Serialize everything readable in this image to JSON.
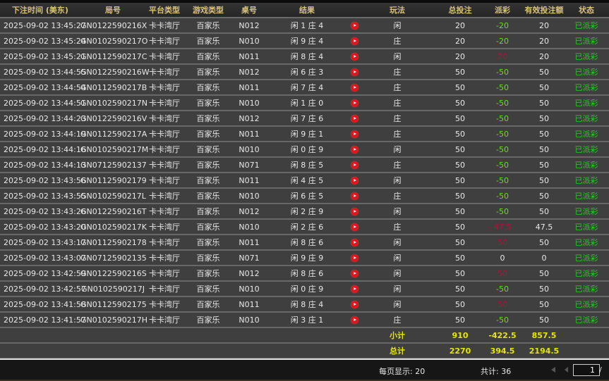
{
  "headers": [
    "下注时间 (美东)",
    "局号",
    "平台类型",
    "游戏类型",
    "桌号",
    "结果",
    "",
    "玩法",
    "总投注",
    "派彩",
    "有效投注额",
    "状态"
  ],
  "rows": [
    {
      "time": "2025-09-02 13:45:27",
      "id": "GN0122590216X",
      "platform": "卡卡湾厅",
      "game": "百家乐",
      "table": "N012",
      "result": "闲 1 庄 4",
      "play": "闲",
      "bet": "20",
      "payout": "-20",
      "payout_color": "green",
      "valid": "20",
      "status": "已派彩"
    },
    {
      "time": "2025-09-02 13:45:24",
      "id": "GN0102590217O",
      "platform": "卡卡湾厅",
      "game": "百家乐",
      "table": "N010",
      "result": "闲 9 庄 4",
      "play": "庄",
      "bet": "20",
      "payout": "-20",
      "payout_color": "green",
      "valid": "20",
      "status": "已派彩"
    },
    {
      "time": "2025-09-02 13:45:21",
      "id": "GN0112590217C",
      "platform": "卡卡湾厅",
      "game": "百家乐",
      "table": "N011",
      "result": "闲 8 庄 4",
      "play": "闲",
      "bet": "20",
      "payout": "20",
      "payout_color": "red",
      "valid": "20",
      "status": "已派彩"
    },
    {
      "time": "2025-09-02 13:44:55",
      "id": "GN0122590216W",
      "platform": "卡卡湾厅",
      "game": "百家乐",
      "table": "N012",
      "result": "闲 6 庄 3",
      "play": "庄",
      "bet": "50",
      "payout": "-50",
      "payout_color": "green",
      "valid": "50",
      "status": "已派彩"
    },
    {
      "time": "2025-09-02 13:44:54",
      "id": "GN0112590217B",
      "platform": "卡卡湾厅",
      "game": "百家乐",
      "table": "N011",
      "result": "闲 7 庄 4",
      "play": "庄",
      "bet": "50",
      "payout": "-50",
      "payout_color": "green",
      "valid": "50",
      "status": "已派彩"
    },
    {
      "time": "2025-09-02 13:44:51",
      "id": "GN0102590217N",
      "platform": "卡卡湾厅",
      "game": "百家乐",
      "table": "N010",
      "result": "闲 1 庄 0",
      "play": "庄",
      "bet": "50",
      "payout": "-50",
      "payout_color": "green",
      "valid": "50",
      "status": "已派彩"
    },
    {
      "time": "2025-09-02 13:44:23",
      "id": "GN0122590216V",
      "platform": "卡卡湾厅",
      "game": "百家乐",
      "table": "N012",
      "result": "闲 7 庄 6",
      "play": "庄",
      "bet": "50",
      "payout": "-50",
      "payout_color": "green",
      "valid": "50",
      "status": "已派彩"
    },
    {
      "time": "2025-09-02 13:44:19",
      "id": "GN0112590217A",
      "platform": "卡卡湾厅",
      "game": "百家乐",
      "table": "N011",
      "result": "闲 9 庄 1",
      "play": "庄",
      "bet": "50",
      "payout": "-50",
      "payout_color": "green",
      "valid": "50",
      "status": "已派彩"
    },
    {
      "time": "2025-09-02 13:44:16",
      "id": "GN0102590217M",
      "platform": "卡卡湾厅",
      "game": "百家乐",
      "table": "N010",
      "result": "闲 0 庄 9",
      "play": "闲",
      "bet": "50",
      "payout": "-50",
      "payout_color": "green",
      "valid": "50",
      "status": "已派彩"
    },
    {
      "time": "2025-09-02 13:44:13",
      "id": "GN07125902137",
      "platform": "卡卡湾厅",
      "game": "百家乐",
      "table": "N071",
      "result": "闲 8 庄 5",
      "play": "庄",
      "bet": "50",
      "payout": "-50",
      "payout_color": "green",
      "valid": "50",
      "status": "已派彩"
    },
    {
      "time": "2025-09-02 13:43:56",
      "id": "GN01125902179",
      "platform": "卡卡湾厅",
      "game": "百家乐",
      "table": "N011",
      "result": "闲 4 庄 5",
      "play": "闲",
      "bet": "50",
      "payout": "-50",
      "payout_color": "green",
      "valid": "50",
      "status": "已派彩"
    },
    {
      "time": "2025-09-02 13:43:55",
      "id": "GN0102590217L",
      "platform": "卡卡湾厅",
      "game": "百家乐",
      "table": "N010",
      "result": "闲 6 庄 5",
      "play": "庄",
      "bet": "50",
      "payout": "-50",
      "payout_color": "green",
      "valid": "50",
      "status": "已派彩"
    },
    {
      "time": "2025-09-02 13:43:26",
      "id": "GN0122590216T",
      "platform": "卡卡湾厅",
      "game": "百家乐",
      "table": "N012",
      "result": "闲 2 庄 9",
      "play": "闲",
      "bet": "50",
      "payout": "-50",
      "payout_color": "green",
      "valid": "50",
      "status": "已派彩"
    },
    {
      "time": "2025-09-02 13:43:20",
      "id": "GN0102590217K",
      "platform": "卡卡湾厅",
      "game": "百家乐",
      "table": "N010",
      "result": "闲 2 庄 6",
      "play": "庄",
      "bet": "50",
      "payout": "47.5",
      "payout_color": "red",
      "valid": "47.5",
      "status": "已派彩"
    },
    {
      "time": "2025-09-02 13:43:17",
      "id": "GN01125902178",
      "platform": "卡卡湾厅",
      "game": "百家乐",
      "table": "N011",
      "result": "闲 8 庄 6",
      "play": "闲",
      "bet": "50",
      "payout": "50",
      "payout_color": "red",
      "valid": "50",
      "status": "已派彩"
    },
    {
      "time": "2025-09-02 13:43:07",
      "id": "GN07125902135",
      "platform": "卡卡湾厅",
      "game": "百家乐",
      "table": "N071",
      "result": "闲 9 庄 9",
      "play": "闲",
      "bet": "50",
      "payout": "0",
      "payout_color": "white",
      "valid": "0",
      "status": "已派彩"
    },
    {
      "time": "2025-09-02 13:42:59",
      "id": "GN0122590216S",
      "platform": "卡卡湾厅",
      "game": "百家乐",
      "table": "N012",
      "result": "闲 8 庄 6",
      "play": "闲",
      "bet": "50",
      "payout": "50",
      "payout_color": "red",
      "valid": "50",
      "status": "已派彩"
    },
    {
      "time": "2025-09-02 13:42:57",
      "id": "GN0102590217J",
      "platform": "卡卡湾厅",
      "game": "百家乐",
      "table": "N010",
      "result": "闲 0 庄 9",
      "play": "闲",
      "bet": "50",
      "payout": "-50",
      "payout_color": "green",
      "valid": "50",
      "status": "已派彩"
    },
    {
      "time": "2025-09-02 13:41:58",
      "id": "GN01125902175",
      "platform": "卡卡湾厅",
      "game": "百家乐",
      "table": "N011",
      "result": "闲 8 庄 4",
      "play": "闲",
      "bet": "50",
      "payout": "50",
      "payout_color": "red",
      "valid": "50",
      "status": "已派彩"
    },
    {
      "time": "2025-09-02 13:41:57",
      "id": "GN0102590217H",
      "platform": "卡卡湾厅",
      "game": "百家乐",
      "table": "N010",
      "result": "闲 3 庄 1",
      "play": "庄",
      "bet": "50",
      "payout": "-50",
      "payout_color": "green",
      "valid": "50",
      "status": "已派彩"
    }
  ],
  "subtotal": {
    "label": "小计",
    "bet": "910",
    "payout": "-422.5",
    "valid": "857.5"
  },
  "total": {
    "label": "总计",
    "bet": "2270",
    "payout": "394.5",
    "valid": "2194.5"
  },
  "footer": {
    "page_size_label": "每页显示: 20",
    "total_label": "共计: 36",
    "page": "1",
    "page_sep": "/"
  },
  "icons": {
    "replay": "play-video-icon",
    "first": "first-page-icon",
    "prev": "prev-page-icon"
  },
  "colors": {
    "header_text": "#d9c27a",
    "win_text": "#66dd22",
    "loss_text": "#a8163a",
    "status": "#22cc22",
    "summary": "#e6e600",
    "row_bg": "#3f3f3f"
  }
}
